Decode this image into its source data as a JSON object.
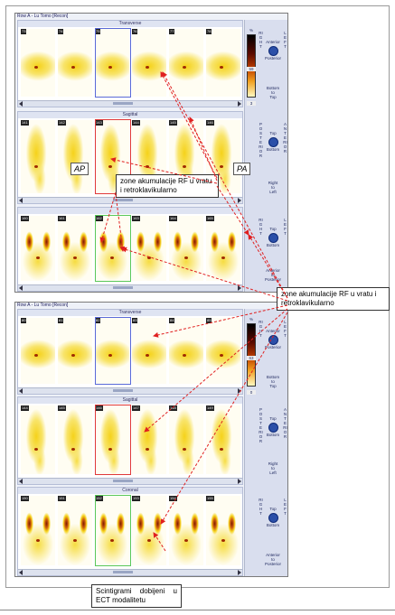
{
  "viewer1": {
    "title": "Row A - Lu Tomo [Recon]",
    "transverse_label": "Transverse",
    "sagittal_label": "Sagittal",
    "coronal_label": "",
    "scale_top": "%",
    "scale_value": "59",
    "scale_bottom": "3",
    "side_transverse": {
      "top": "Anterior",
      "bottom": "Posterior",
      "foot1": "Bottom",
      "foot2": "to",
      "foot3": "Top",
      "left_vert": "RIGHT",
      "right_vert": "LEFT"
    },
    "side_sagittal": {
      "top": "Top",
      "bottom": "Bottom",
      "foot1": "Right",
      "foot2": "to",
      "foot3": "Left",
      "left_vert": "POSTERIOR",
      "right_vert": "ANTERIOR"
    },
    "side_coronal": {
      "top": "Top",
      "bottom": "Bottom",
      "foot1": "Anterior",
      "foot2": "to",
      "foot3": "Posterior",
      "left_vert": "RIGHT",
      "right_vert": "LEFT"
    },
    "trans_nums": [
      "73",
      "74",
      "75",
      "76",
      "77",
      "78"
    ],
    "sag_nums": [
      "141",
      "142",
      "143",
      "144",
      "145",
      "146"
    ],
    "cor_nums": [
      "160",
      "161",
      "162",
      "163",
      "164",
      "165"
    ],
    "ap_label": "AP",
    "pa_label": "PA"
  },
  "viewer2": {
    "title": "Row A - Lu Tomo [Recon]",
    "transverse_label": "Transverse",
    "sagittal_label": "Sagittal",
    "coronal_label": "Coronal",
    "scale_top": "%",
    "scale_value": "63",
    "scale_bottom": "0",
    "side_transverse": {
      "top": "Anterior",
      "bottom": "Posterior",
      "foot1": "Bottom",
      "foot2": "to",
      "foot3": "Top",
      "left_vert": "RIGHT",
      "right_vert": "LEFT"
    },
    "side_sagittal": {
      "top": "Top",
      "bottom": "Bottom",
      "foot1": "Right",
      "foot2": "to",
      "foot3": "Left",
      "left_vert": "POSTERIOR",
      "right_vert": "ANTERIOR"
    },
    "side_coronal": {
      "top": "Top",
      "bottom": "Bottom",
      "foot1": "Anterior",
      "foot2": "to",
      "foot3": "Posterior",
      "left_vert": "RIGHT",
      "right_vert": "LEFT"
    },
    "trans_nums": [
      "80",
      "81",
      "82",
      "83",
      "84",
      "85"
    ],
    "sag_nums": [
      "144",
      "145",
      "146",
      "147",
      "148",
      "149"
    ],
    "cor_nums": [
      "150",
      "151",
      "152",
      "153",
      "154",
      "155"
    ]
  },
  "callout_top": "zone akumulacije RF u vratu i retroklavikularno",
  "callout_right": "zone akumulacije RF u vratu i retroklavikularno",
  "caption": "Scintigrami dobijeni u ECT modalitetu",
  "colors": {
    "hot_yellow": "#f5d21a",
    "hot_dark": "#7a1a00",
    "arrow_red": "#e02020",
    "cursor_blue": "#5a6ad8",
    "cursor_red": "#e03a3a",
    "cursor_green": "#5ac85a"
  }
}
